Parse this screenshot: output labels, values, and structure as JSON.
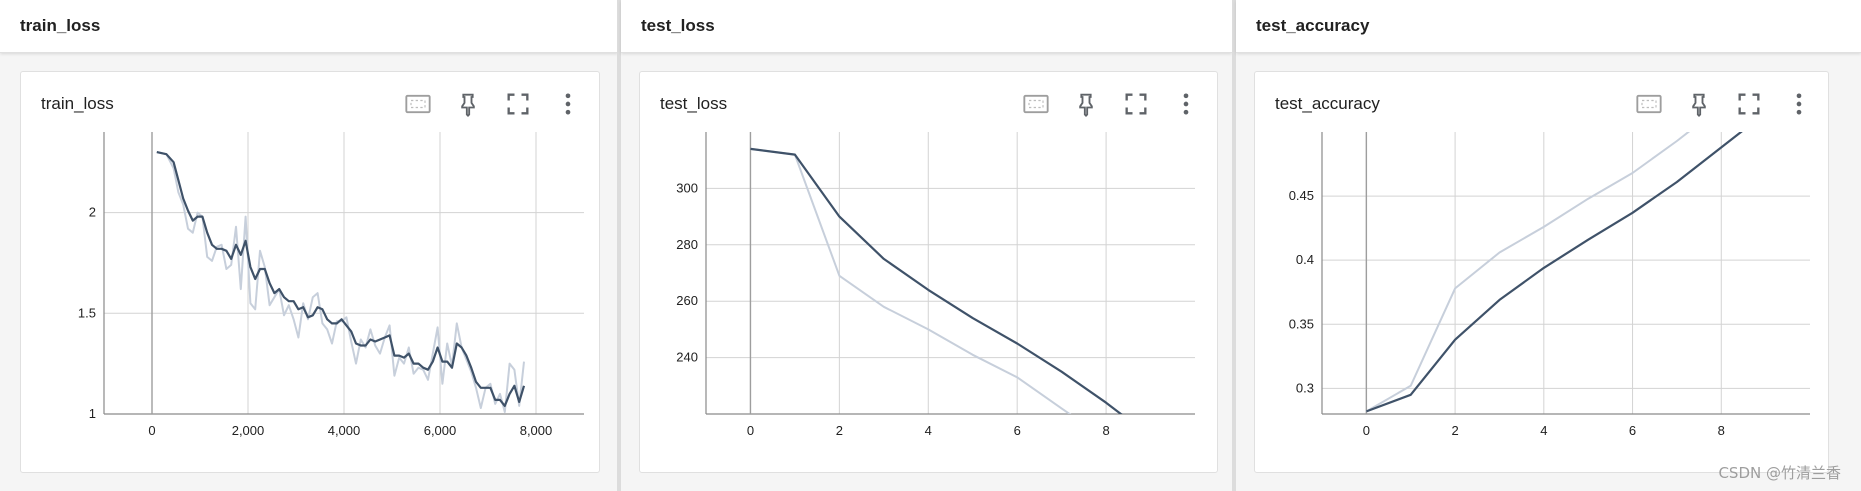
{
  "panels": [
    {
      "header": "train_loss",
      "card_title": "train_loss"
    },
    {
      "header": "test_loss",
      "card_title": "test_loss"
    },
    {
      "header": "test_accuracy",
      "card_title": "test_accuracy"
    }
  ],
  "toolbar_icons": [
    "fit-domain-icon",
    "pin-icon",
    "fullscreen-icon",
    "more-vert-icon"
  ],
  "colors": {
    "smoothed": "#3f5269",
    "raw": "#c7cfdb",
    "grid": "#d3d3d3",
    "axis": "#8a8a8a"
  },
  "watermark": "CSDN @竹清兰香",
  "chart_data": [
    {
      "type": "line",
      "title": "train_loss",
      "xlim": [
        -1000,
        9000
      ],
      "ylim": [
        1.0,
        2.4
      ],
      "x_ticks": [
        0,
        2000,
        4000,
        6000,
        8000
      ],
      "x_tick_labels": [
        "0",
        "2,000",
        "4,000",
        "6,000",
        "8,000"
      ],
      "y_ticks": [
        1.5,
        2
      ],
      "y_tick_labels": [
        "1.5",
        "2"
      ],
      "y_edge_label": "1",
      "series": [
        {
          "role": "raw",
          "x": [
            100,
            300,
            450,
            550,
            650,
            750,
            850,
            950,
            1050,
            1150,
            1250,
            1350,
            1450,
            1550,
            1650,
            1750,
            1850,
            1950,
            2050,
            2150,
            2250,
            2350,
            2450,
            2550,
            2650,
            2750,
            2850,
            2950,
            3050,
            3150,
            3250,
            3350,
            3450,
            3550,
            3650,
            3750,
            3850,
            3950,
            4050,
            4150,
            4250,
            4350,
            4450,
            4550,
            4650,
            4750,
            4850,
            4950,
            5050,
            5150,
            5250,
            5350,
            5450,
            5550,
            5650,
            5750,
            5850,
            5950,
            6050,
            6150,
            6250,
            6350,
            6450,
            6550,
            6650,
            6750,
            6850,
            6950,
            7050,
            7150,
            7250,
            7350,
            7450,
            7550,
            7650,
            7750
          ],
          "y": [
            2.3,
            2.29,
            2.22,
            2.1,
            2.04,
            1.92,
            1.9,
            2.0,
            1.98,
            1.78,
            1.76,
            1.83,
            1.84,
            1.72,
            1.74,
            1.93,
            1.62,
            1.98,
            1.55,
            1.52,
            1.81,
            1.73,
            1.54,
            1.58,
            1.62,
            1.49,
            1.54,
            1.47,
            1.38,
            1.55,
            1.47,
            1.58,
            1.6,
            1.45,
            1.42,
            1.35,
            1.46,
            1.46,
            1.48,
            1.36,
            1.25,
            1.37,
            1.33,
            1.42,
            1.34,
            1.3,
            1.38,
            1.44,
            1.19,
            1.28,
            1.25,
            1.33,
            1.2,
            1.23,
            1.22,
            1.17,
            1.3,
            1.43,
            1.15,
            1.35,
            1.24,
            1.45,
            1.33,
            1.27,
            1.21,
            1.13,
            1.03,
            1.13,
            1.15,
            1.05,
            1.1,
            1.01,
            1.25,
            1.22,
            1.04,
            1.26
          ]
        },
        {
          "role": "smoothed",
          "x": [
            100,
            300,
            450,
            550,
            650,
            750,
            850,
            950,
            1050,
            1150,
            1250,
            1350,
            1450,
            1550,
            1650,
            1750,
            1850,
            1950,
            2050,
            2150,
            2250,
            2350,
            2450,
            2550,
            2650,
            2750,
            2850,
            2950,
            3050,
            3150,
            3250,
            3350,
            3450,
            3550,
            3650,
            3750,
            3850,
            3950,
            4050,
            4150,
            4250,
            4350,
            4450,
            4550,
            4650,
            4750,
            4850,
            4950,
            5050,
            5150,
            5250,
            5350,
            5450,
            5550,
            5650,
            5750,
            5850,
            5950,
            6050,
            6150,
            6250,
            6350,
            6450,
            6550,
            6650,
            6750,
            6850,
            6950,
            7050,
            7150,
            7250,
            7350,
            7450,
            7550,
            7650,
            7750
          ],
          "y": [
            2.3,
            2.29,
            2.25,
            2.16,
            2.07,
            2.01,
            1.96,
            1.98,
            1.98,
            1.9,
            1.84,
            1.82,
            1.82,
            1.81,
            1.77,
            1.84,
            1.79,
            1.86,
            1.73,
            1.67,
            1.72,
            1.72,
            1.65,
            1.6,
            1.62,
            1.58,
            1.56,
            1.56,
            1.52,
            1.53,
            1.48,
            1.49,
            1.53,
            1.52,
            1.47,
            1.45,
            1.45,
            1.47,
            1.44,
            1.41,
            1.35,
            1.34,
            1.34,
            1.37,
            1.36,
            1.37,
            1.38,
            1.39,
            1.29,
            1.29,
            1.28,
            1.3,
            1.25,
            1.25,
            1.23,
            1.22,
            1.26,
            1.33,
            1.26,
            1.26,
            1.23,
            1.35,
            1.33,
            1.29,
            1.23,
            1.16,
            1.13,
            1.13,
            1.13,
            1.07,
            1.07,
            1.04,
            1.1,
            1.14,
            1.06,
            1.14
          ]
        }
      ]
    },
    {
      "type": "line",
      "title": "test_loss",
      "xlim": [
        -1,
        10
      ],
      "ylim": [
        220,
        320
      ],
      "x_ticks": [
        0,
        2,
        4,
        6,
        8
      ],
      "x_tick_labels": [
        "0",
        "2",
        "4",
        "6",
        "8"
      ],
      "y_ticks": [
        240,
        260,
        280,
        300
      ],
      "y_tick_labels": [
        "240",
        "260",
        "280",
        "300"
      ],
      "series": [
        {
          "role": "raw",
          "x": [
            0,
            1,
            2,
            3,
            4,
            5,
            6,
            7,
            8
          ],
          "y": [
            314,
            312,
            269,
            258,
            250,
            241,
            233,
            222,
            211
          ]
        },
        {
          "role": "smoothed",
          "x": [
            0,
            1,
            2,
            3,
            4,
            5,
            6,
            7,
            8,
            9
          ],
          "y": [
            314,
            312,
            290,
            275,
            264,
            254,
            245,
            235,
            224,
            212
          ]
        }
      ]
    },
    {
      "type": "line",
      "title": "test_accuracy",
      "xlim": [
        -1,
        10
      ],
      "ylim": [
        0.28,
        0.5
      ],
      "x_ticks": [
        0,
        2,
        4,
        6,
        8
      ],
      "x_tick_labels": [
        "0",
        "2",
        "4",
        "6",
        "8"
      ],
      "y_ticks": [
        0.3,
        0.35,
        0.4,
        0.45
      ],
      "y_tick_labels": [
        "0.3",
        "0.35",
        "0.4",
        "0.45"
      ],
      "series": [
        {
          "role": "raw",
          "x": [
            0,
            1,
            2,
            3,
            4,
            5,
            6,
            7,
            8
          ],
          "y": [
            0.282,
            0.302,
            0.378,
            0.406,
            0.426,
            0.448,
            0.468,
            0.493,
            0.52
          ]
        },
        {
          "role": "smoothed",
          "x": [
            0,
            1,
            2,
            3,
            4,
            5,
            6,
            7,
            8,
            9
          ],
          "y": [
            0.282,
            0.295,
            0.338,
            0.369,
            0.394,
            0.416,
            0.437,
            0.461,
            0.488,
            0.515
          ]
        }
      ]
    }
  ]
}
